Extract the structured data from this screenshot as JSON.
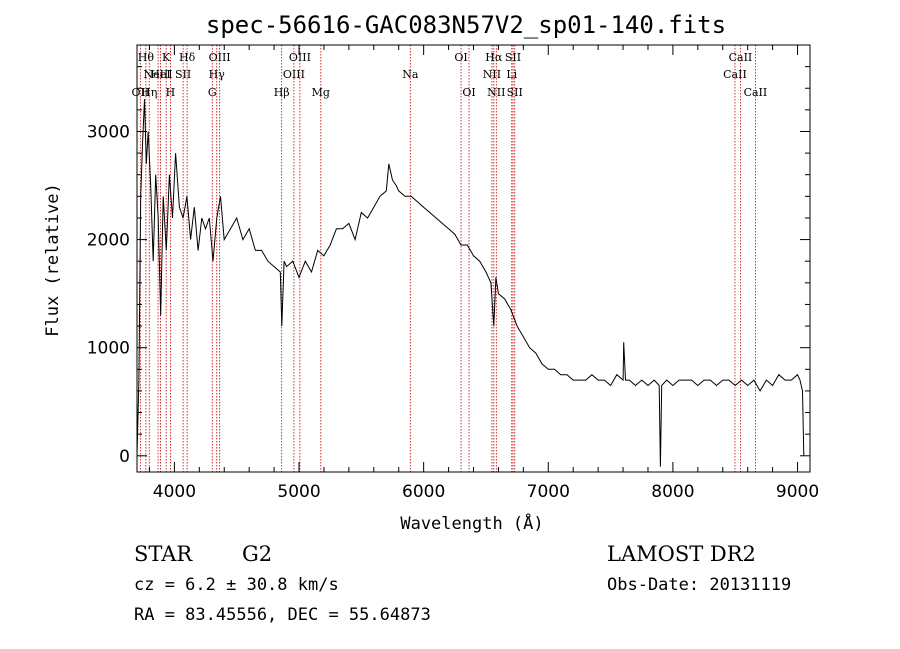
{
  "chart_data": {
    "type": "line",
    "title": "spec-56616-GAC083N57V2_sp01-140.fits",
    "xlabel": "Wavelength (Å)",
    "ylabel": "Flux (relative)",
    "xlim": [
      3700,
      9100
    ],
    "ylim": [
      -150,
      3800
    ],
    "x_ticks": [
      4000,
      5000,
      6000,
      7000,
      8000,
      9000
    ],
    "y_ticks": [
      0,
      1000,
      2000,
      3000
    ],
    "x_tick_labels": [
      "4000",
      "5000",
      "6000",
      "7000",
      "8000",
      "9000"
    ],
    "y_tick_labels": [
      "0",
      "1000",
      "2000",
      "3000"
    ],
    "grid": false,
    "series": [
      {
        "x": [
          3700,
          3715,
          3730,
          3745,
          3760,
          3775,
          3790,
          3810,
          3830,
          3850,
          3870,
          3890,
          3910,
          3935,
          3960,
          3985,
          4010,
          4040,
          4070,
          4100,
          4130,
          4160,
          4190,
          4220,
          4250,
          4280,
          4310,
          4340,
          4370,
          4400,
          4450,
          4500,
          4550,
          4600,
          4650,
          4700,
          4750,
          4800,
          4850,
          4862,
          4880,
          4900,
          4950,
          5000,
          5050,
          5100,
          5150,
          5200,
          5250,
          5300,
          5350,
          5400,
          5450,
          5500,
          5550,
          5600,
          5650,
          5700,
          5720,
          5750,
          5780,
          5800,
          5850,
          5900,
          5950,
          6000,
          6050,
          6100,
          6150,
          6200,
          6250,
          6300,
          6350,
          6400,
          6450,
          6500,
          6540,
          6563,
          6580,
          6600,
          6650,
          6700,
          6750,
          6800,
          6850,
          6900,
          6950,
          7000,
          7050,
          7100,
          7150,
          7200,
          7250,
          7300,
          7350,
          7400,
          7450,
          7500,
          7550,
          7600,
          7605,
          7620,
          7650,
          7700,
          7750,
          7800,
          7850,
          7890,
          7900,
          7910,
          7950,
          8000,
          8050,
          8100,
          8150,
          8200,
          8250,
          8300,
          8350,
          8400,
          8450,
          8500,
          8550,
          8600,
          8650,
          8700,
          8750,
          8800,
          8850,
          8900,
          8950,
          9000,
          9020,
          9040,
          9050
        ],
        "y": [
          0,
          700,
          2400,
          2900,
          3300,
          2700,
          3000,
          2500,
          1800,
          2600,
          2200,
          1300,
          2400,
          1900,
          2600,
          2200,
          2800,
          2300,
          2200,
          2400,
          2000,
          2300,
          1900,
          2200,
          2100,
          2200,
          1800,
          2200,
          2400,
          2000,
          2100,
          2200,
          2000,
          2100,
          1900,
          1900,
          1800,
          1750,
          1700,
          1200,
          1800,
          1750,
          1800,
          1650,
          1800,
          1700,
          1900,
          1850,
          1950,
          2100,
          2100,
          2150,
          2000,
          2250,
          2200,
          2300,
          2400,
          2450,
          2700,
          2550,
          2500,
          2450,
          2400,
          2400,
          2350,
          2300,
          2250,
          2200,
          2150,
          2100,
          2050,
          1950,
          1950,
          1850,
          1800,
          1700,
          1600,
          1200,
          1650,
          1500,
          1450,
          1350,
          1200,
          1100,
          1000,
          950,
          850,
          800,
          800,
          750,
          750,
          700,
          700,
          700,
          750,
          700,
          700,
          650,
          750,
          700,
          1050,
          700,
          700,
          650,
          700,
          650,
          700,
          650,
          -100,
          650,
          700,
          650,
          700,
          700,
          700,
          650,
          700,
          700,
          650,
          700,
          700,
          650,
          700,
          650,
          700,
          600,
          700,
          650,
          750,
          700,
          700,
          750,
          700,
          600,
          0
        ]
      }
    ],
    "line_markers": [
      {
        "wl": 3727,
        "label": "OII",
        "row": 3
      },
      {
        "wl": 3771,
        "label": "Hθ",
        "row": 1
      },
      {
        "wl": 3798,
        "label": "Hη",
        "row": 3
      },
      {
        "wl": 3869,
        "label": "NeIII",
        "row": 2
      },
      {
        "wl": 3889,
        "label": "HeI",
        "row": 2
      },
      {
        "wl": 3934,
        "label": "K",
        "row": 1
      },
      {
        "wl": 3968,
        "label": "H",
        "row": 3
      },
      {
        "wl": 4070,
        "label": "SII",
        "row": 2
      },
      {
        "wl": 4102,
        "label": "Hδ",
        "row": 1
      },
      {
        "wl": 4304,
        "label": "G",
        "row": 3
      },
      {
        "wl": 4340,
        "label": "Hγ",
        "row": 2
      },
      {
        "wl": 4363,
        "label": "OIII",
        "row": 1
      },
      {
        "wl": 4861,
        "label": "Hβ",
        "row": 3
      },
      {
        "wl": 4959,
        "label": "OIII",
        "row": 2
      },
      {
        "wl": 5007,
        "label": "OIII",
        "row": 1
      },
      {
        "wl": 5175,
        "label": "Mg",
        "row": 3
      },
      {
        "wl": 5893,
        "label": "Na",
        "row": 2
      },
      {
        "wl": 6300,
        "label": "OI",
        "row": 1
      },
      {
        "wl": 6364,
        "label": "OI",
        "row": 3
      },
      {
        "wl": 6548,
        "label": "NII",
        "row": 2
      },
      {
        "wl": 6563,
        "label": "Hα",
        "row": 1
      },
      {
        "wl": 6583,
        "label": "NII",
        "row": 3
      },
      {
        "wl": 6707,
        "label": "Li",
        "row": 2
      },
      {
        "wl": 6717,
        "label": "SII",
        "row": 1
      },
      {
        "wl": 6731,
        "label": "SII",
        "row": 3
      },
      {
        "wl": 8498,
        "label": "CaII",
        "row": 2
      },
      {
        "wl": 8542,
        "label": "CaII",
        "row": 1
      },
      {
        "wl": 8662,
        "label": "CaII",
        "row": 3
      }
    ],
    "line_color": "#c00000"
  },
  "info": {
    "object_type": "STAR",
    "subclass": "G2",
    "survey": "LAMOST DR2",
    "cz": "cz = 6.2 ± 30.8 km/s",
    "obs_date": "Obs-Date: 20131119",
    "radec": "RA =  83.45556, DEC =  55.64873"
  }
}
